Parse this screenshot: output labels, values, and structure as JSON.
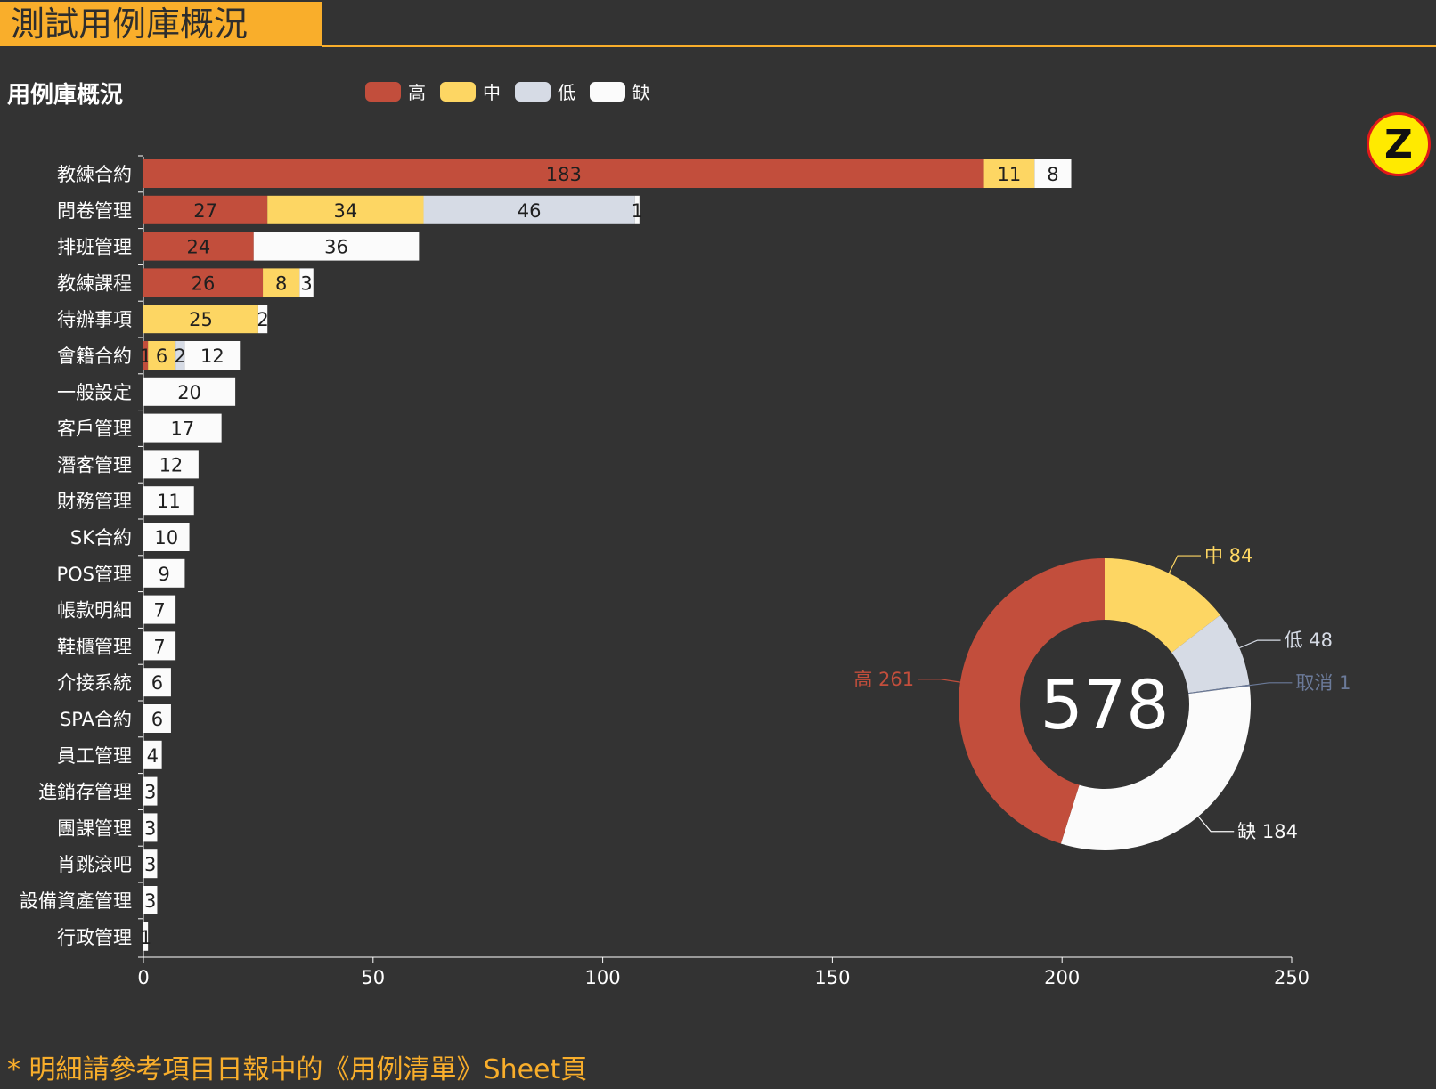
{
  "header": {
    "page_title": "測試用例庫概況",
    "z_badge": "Z"
  },
  "colors": {
    "accent": "#f9ae2b",
    "background": "#333333",
    "high": "#c24e3c",
    "medium": "#fdd663",
    "low": "#d6dbe5",
    "missing": "#fbfbfb",
    "cancel": "#6b7a99"
  },
  "footnote": "* 明細請參考項目日報中的《用例清單》Sheet頁",
  "chart_data": [
    {
      "type": "bar",
      "orientation": "horizontal",
      "stacked": true,
      "title": "用例庫概況",
      "legend": [
        "高",
        "中",
        "低",
        "缺"
      ],
      "legend_position": "top",
      "categories": [
        "教練合約",
        "問卷管理",
        "排班管理",
        "教練課程",
        "待辦事項",
        "會籍合約",
        "一般設定",
        "客戶管理",
        "潛客管理",
        "財務管理",
        "SK合約",
        "POS管理",
        "帳款明細",
        "鞋櫃管理",
        "介接系統",
        "SPA合約",
        "員工管理",
        "進銷存管理",
        "團課管理",
        "肖跳滾吧",
        "設備資產管理",
        "行政管理"
      ],
      "series": [
        {
          "name": "高",
          "color": "#c24e3c",
          "values": [
            183,
            27,
            24,
            26,
            0,
            1,
            0,
            0,
            0,
            0,
            0,
            0,
            0,
            0,
            0,
            0,
            0,
            0,
            0,
            0,
            0,
            0
          ]
        },
        {
          "name": "中",
          "color": "#fdd663",
          "values": [
            11,
            34,
            0,
            8,
            25,
            6,
            0,
            0,
            0,
            0,
            0,
            0,
            0,
            0,
            0,
            0,
            0,
            0,
            0,
            0,
            0,
            0
          ]
        },
        {
          "name": "低",
          "color": "#d6dbe5",
          "values": [
            0,
            46,
            0,
            0,
            0,
            2,
            0,
            0,
            0,
            0,
            0,
            0,
            0,
            0,
            0,
            0,
            0,
            0,
            0,
            0,
            0,
            0
          ]
        },
        {
          "name": "缺",
          "color": "#fbfbfb",
          "values": [
            8,
            1,
            36,
            3,
            2,
            12,
            20,
            17,
            12,
            11,
            10,
            9,
            7,
            7,
            6,
            6,
            4,
            3,
            3,
            3,
            3,
            1
          ]
        }
      ],
      "xlim": [
        0,
        250
      ],
      "xticks": [
        0,
        50,
        100,
        150,
        200,
        250
      ],
      "grid": false
    },
    {
      "type": "pie",
      "donut": true,
      "total": 578,
      "slices": [
        {
          "name": "中",
          "value": 84,
          "color": "#fdd663",
          "label": "中 84"
        },
        {
          "name": "低",
          "value": 48,
          "color": "#d6dbe5",
          "label": "低 48"
        },
        {
          "name": "取消",
          "value": 1,
          "color": "#6b7a99",
          "label": "取消 1"
        },
        {
          "name": "缺",
          "value": 184,
          "color": "#fbfbfb",
          "label": "缺 184"
        },
        {
          "name": "高",
          "value": 261,
          "color": "#c24e3c",
          "label": "高 261"
        }
      ]
    }
  ]
}
